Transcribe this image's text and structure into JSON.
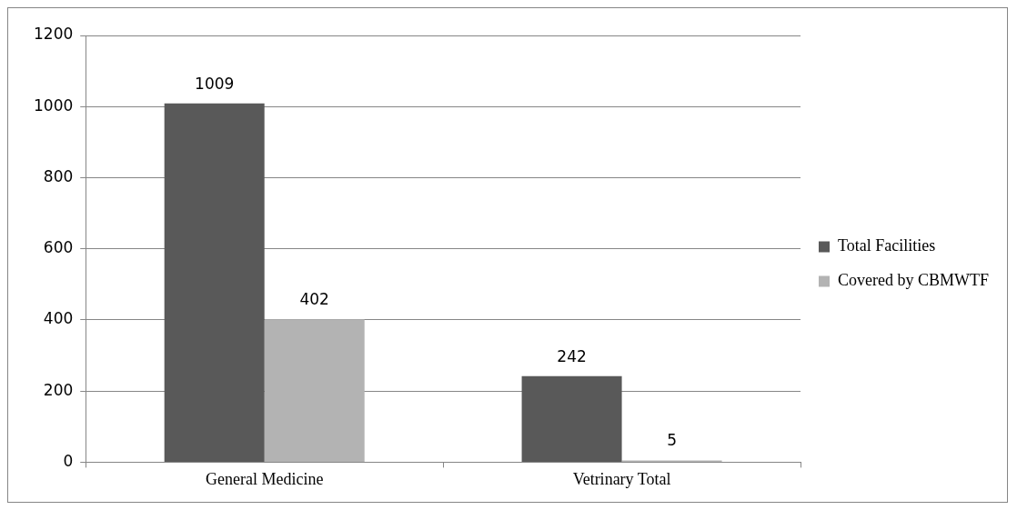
{
  "chart_data": {
    "type": "bar",
    "categories": [
      "General Medicine",
      "Vetrinary Total"
    ],
    "series": [
      {
        "name": "Total Facilities",
        "color": "#595959",
        "values": [
          1009,
          242
        ]
      },
      {
        "name": "Covered by CBMWTF",
        "color": "#b3b3b3",
        "values": [
          402,
          5
        ]
      }
    ],
    "ylim": [
      0,
      1200
    ],
    "yticks": [
      0,
      200,
      400,
      600,
      800,
      1000,
      1200
    ],
    "grid": "y",
    "legend": "right",
    "data_labels": true
  }
}
